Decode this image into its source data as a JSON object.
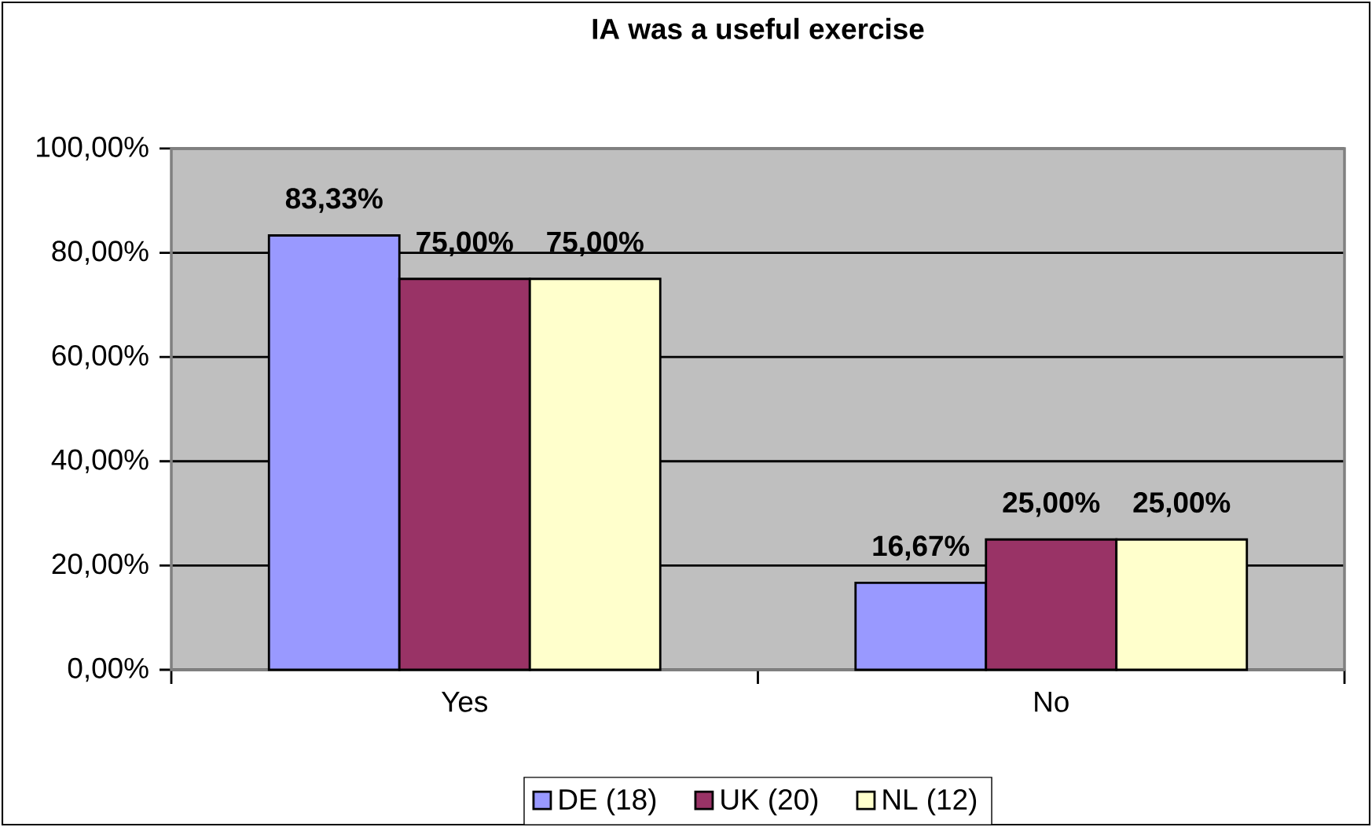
{
  "chart_data": {
    "type": "bar",
    "title": "IA was a useful exercise",
    "categories": [
      "Yes",
      "No"
    ],
    "series": [
      {
        "name": "DE (18)",
        "color": "#9999ff",
        "values": [
          83.33,
          16.67
        ],
        "value_labels": [
          "83,33%",
          "16,67%"
        ]
      },
      {
        "name": "UK (20)",
        "color": "#993366",
        "values": [
          75.0,
          25.0
        ],
        "value_labels": [
          "75,00%",
          "25,00%"
        ]
      },
      {
        "name": "NL (12)",
        "color": "#ffffcc",
        "values": [
          75.0,
          25.0
        ],
        "value_labels": [
          "75,00%",
          "25,00%"
        ]
      }
    ],
    "ylim": [
      0,
      100
    ],
    "yticks": [
      {
        "value": 0,
        "label": "0,00%"
      },
      {
        "value": 20,
        "label": "20,00%"
      },
      {
        "value": 40,
        "label": "40,00%"
      },
      {
        "value": 60,
        "label": "60,00%"
      },
      {
        "value": 80,
        "label": "80,00%"
      },
      {
        "value": 100,
        "label": "100,00%"
      }
    ],
    "grid": "y",
    "legend": "bottom"
  }
}
